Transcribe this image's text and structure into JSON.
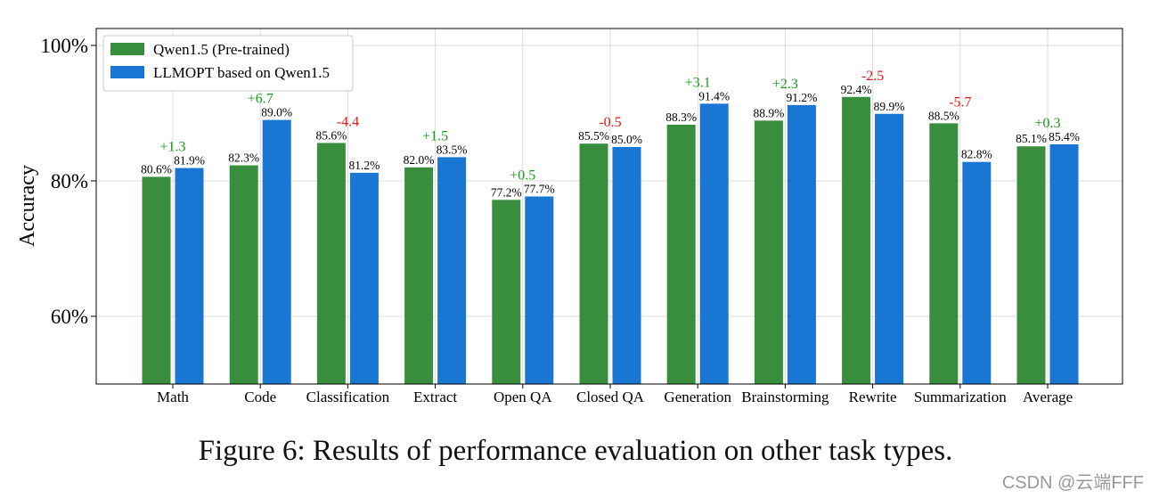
{
  "chart_data": {
    "type": "bar",
    "ylabel": "Accuracy",
    "ylim": [
      50,
      102.5
    ],
    "yticks": [
      60,
      80,
      100
    ],
    "ytick_labels": [
      "60%",
      "80%",
      "100%"
    ],
    "grid": true,
    "legend_position": "top-left",
    "categories": [
      "Math",
      "Code",
      "Classification",
      "Extract",
      "Open QA",
      "Closed QA",
      "Generation",
      "Brainstorming",
      "Rewrite",
      "Summarization",
      "Average"
    ],
    "series": [
      {
        "name": "Qwen1.5 (Pre-trained)",
        "color": "#388e3c",
        "values": [
          80.6,
          82.3,
          85.6,
          82.0,
          77.2,
          85.5,
          88.3,
          88.9,
          92.4,
          88.5,
          85.1
        ],
        "labels": [
          "80.6%",
          "82.3%",
          "85.6%",
          "82.0%",
          "77.2%",
          "85.5%",
          "88.3%",
          "88.9%",
          "92.4%",
          "88.5%",
          "85.1%"
        ]
      },
      {
        "name": "LLMOPT based on Qwen1.5",
        "color": "#1976d2",
        "values": [
          81.9,
          89.0,
          81.2,
          83.5,
          77.7,
          85.0,
          91.4,
          91.2,
          89.9,
          82.8,
          85.4
        ],
        "labels": [
          "81.9%",
          "89.0%",
          "81.2%",
          "83.5%",
          "77.7%",
          "85.0%",
          "91.4%",
          "91.2%",
          "89.9%",
          "82.8%",
          "85.4%"
        ]
      }
    ],
    "deltas": [
      "+1.3",
      "+6.7",
      "-4.4",
      "+1.5",
      "+0.5",
      "-0.5",
      "+3.1",
      "+2.3",
      "-2.5",
      "-5.7",
      "+0.3"
    ],
    "delta_colors": {
      "positive": "#1a9a1a",
      "negative": "#ee1111"
    }
  },
  "caption": "Figure 6: Results of performance evaluation on other task types.",
  "watermark": "CSDN @云端FFF"
}
